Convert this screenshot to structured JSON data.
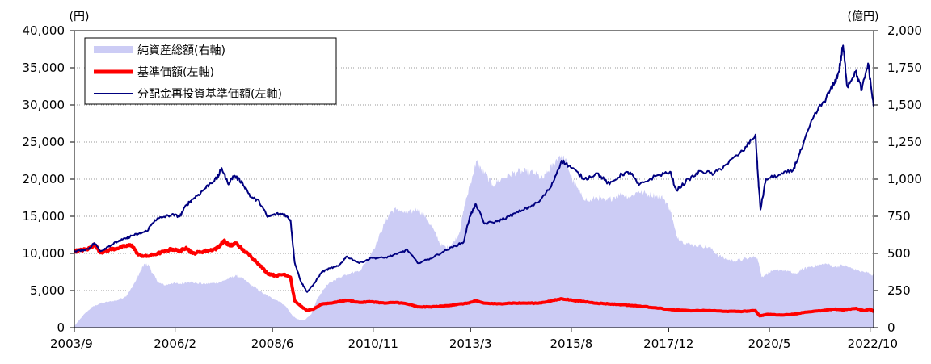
{
  "chart_data": {
    "type": "area",
    "left_axis": {
      "unit": "(円)",
      "ylim": [
        0,
        40000
      ],
      "ticks": [
        "0",
        "5,000",
        "10,000",
        "15,000",
        "20,000",
        "25,000",
        "30,000",
        "35,000",
        "40,000"
      ],
      "tick_values": [
        0,
        5000,
        10000,
        15000,
        20000,
        25000,
        30000,
        35000,
        40000
      ]
    },
    "right_axis": {
      "unit": "(億円)",
      "ylim": [
        0,
        2000
      ],
      "ticks": [
        "0",
        "250",
        "500",
        "750",
        "1,000",
        "1,250",
        "1,500",
        "1,750",
        "2,000"
      ],
      "tick_values": [
        0,
        250,
        500,
        750,
        1000,
        1250,
        1500,
        1750,
        2000
      ]
    },
    "x_axis": {
      "range": [
        2003.667,
        2022.833
      ],
      "tick_labels": [
        "2003/9",
        "2006/2",
        "2008/6",
        "2010/11",
        "2013/3",
        "2015/8",
        "2017/12",
        "2020/5",
        "2022/10"
      ],
      "tick_values": [
        2003.667,
        2006.083,
        2008.417,
        2010.833,
        2013.167,
        2015.583,
        2017.917,
        2020.333,
        2022.75
      ]
    },
    "grid": true,
    "legend_position": "top-left",
    "series": [
      {
        "name": "純資産総額(右軸)",
        "axis": "right",
        "style": "area",
        "color": "#ccccf5",
        "points": [
          [
            2003.667,
            10
          ],
          [
            2003.75,
            40
          ],
          [
            2003.9,
            90
          ],
          [
            2004.1,
            140
          ],
          [
            2004.3,
            165
          ],
          [
            2004.5,
            175
          ],
          [
            2004.7,
            185
          ],
          [
            2004.9,
            210
          ],
          [
            2005.0,
            250
          ],
          [
            2005.15,
            320
          ],
          [
            2005.25,
            380
          ],
          [
            2005.35,
            430
          ],
          [
            2005.45,
            420
          ],
          [
            2005.55,
            360
          ],
          [
            2005.7,
            300
          ],
          [
            2005.85,
            285
          ],
          [
            2006.0,
            300
          ],
          [
            2006.2,
            295
          ],
          [
            2006.4,
            310
          ],
          [
            2006.6,
            300
          ],
          [
            2006.8,
            295
          ],
          [
            2007.0,
            300
          ],
          [
            2007.2,
            310
          ],
          [
            2007.4,
            335
          ],
          [
            2007.55,
            350
          ],
          [
            2007.7,
            330
          ],
          [
            2007.85,
            300
          ],
          [
            2008.0,
            270
          ],
          [
            2008.2,
            230
          ],
          [
            2008.4,
            200
          ],
          [
            2008.6,
            175
          ],
          [
            2008.75,
            140
          ],
          [
            2008.9,
            80
          ],
          [
            2009.0,
            60
          ],
          [
            2009.1,
            50
          ],
          [
            2009.2,
            55
          ],
          [
            2009.35,
            90
          ],
          [
            2009.5,
            200
          ],
          [
            2009.7,
            280
          ],
          [
            2009.9,
            320
          ],
          [
            2010.1,
            350
          ],
          [
            2010.3,
            370
          ],
          [
            2010.5,
            380
          ],
          [
            2010.7,
            460
          ],
          [
            2010.9,
            560
          ],
          [
            2011.1,
            700
          ],
          [
            2011.25,
            780
          ],
          [
            2011.4,
            800
          ],
          [
            2011.6,
            770
          ],
          [
            2011.75,
            780
          ],
          [
            2011.9,
            800
          ],
          [
            2012.1,
            740
          ],
          [
            2012.3,
            650
          ],
          [
            2012.45,
            560
          ],
          [
            2012.6,
            540
          ],
          [
            2012.75,
            570
          ],
          [
            2012.9,
            640
          ],
          [
            2013.05,
            850
          ],
          [
            2013.2,
            1000
          ],
          [
            2013.3,
            1120
          ],
          [
            2013.4,
            1080
          ],
          [
            2013.5,
            1040
          ],
          [
            2013.7,
            960
          ],
          [
            2013.9,
            1000
          ],
          [
            2014.1,
            1030
          ],
          [
            2014.3,
            1050
          ],
          [
            2014.5,
            1050
          ],
          [
            2014.7,
            1040
          ],
          [
            2014.9,
            1000
          ],
          [
            2015.0,
            1040
          ],
          [
            2015.15,
            1100
          ],
          [
            2015.3,
            1160
          ],
          [
            2015.45,
            1130
          ],
          [
            2015.6,
            1000
          ],
          [
            2015.8,
            900
          ],
          [
            2016.0,
            850
          ],
          [
            2016.2,
            880
          ],
          [
            2016.4,
            850
          ],
          [
            2016.6,
            880
          ],
          [
            2016.8,
            900
          ],
          [
            2017.0,
            880
          ],
          [
            2017.2,
            920
          ],
          [
            2017.4,
            900
          ],
          [
            2017.6,
            890
          ],
          [
            2017.8,
            870
          ],
          [
            2017.95,
            800
          ],
          [
            2018.1,
            620
          ],
          [
            2018.25,
            580
          ],
          [
            2018.45,
            560
          ],
          [
            2018.7,
            550
          ],
          [
            2018.9,
            540
          ],
          [
            2019.1,
            490
          ],
          [
            2019.3,
            460
          ],
          [
            2019.5,
            450
          ],
          [
            2019.7,
            460
          ],
          [
            2019.9,
            470
          ],
          [
            2020.0,
            480
          ],
          [
            2020.08,
            440
          ],
          [
            2020.15,
            340
          ],
          [
            2020.25,
            360
          ],
          [
            2020.4,
            380
          ],
          [
            2020.6,
            390
          ],
          [
            2020.8,
            380
          ],
          [
            2020.95,
            360
          ],
          [
            2021.1,
            390
          ],
          [
            2021.3,
            410
          ],
          [
            2021.5,
            420
          ],
          [
            2021.7,
            430
          ],
          [
            2021.9,
            410
          ],
          [
            2022.1,
            420
          ],
          [
            2022.3,
            400
          ],
          [
            2022.5,
            380
          ],
          [
            2022.7,
            370
          ],
          [
            2022.833,
            350
          ]
        ]
      },
      {
        "name": "基準価額(左軸)",
        "axis": "left",
        "style": "line",
        "color": "#ff0000",
        "points": [
          [
            2003.667,
            10300
          ],
          [
            2003.8,
            10400
          ],
          [
            2004.0,
            10600
          ],
          [
            2004.15,
            11200
          ],
          [
            2004.3,
            10100
          ],
          [
            2004.5,
            10500
          ],
          [
            2004.7,
            10700
          ],
          [
            2004.9,
            11000
          ],
          [
            2005.05,
            11100
          ],
          [
            2005.2,
            9800
          ],
          [
            2005.4,
            9600
          ],
          [
            2005.6,
            9900
          ],
          [
            2005.8,
            10200
          ],
          [
            2006.0,
            10600
          ],
          [
            2006.2,
            10300
          ],
          [
            2006.35,
            10800
          ],
          [
            2006.5,
            10000
          ],
          [
            2006.7,
            10200
          ],
          [
            2006.9,
            10400
          ],
          [
            2007.1,
            10700
          ],
          [
            2007.25,
            11700
          ],
          [
            2007.4,
            11000
          ],
          [
            2007.55,
            11400
          ],
          [
            2007.7,
            10500
          ],
          [
            2007.9,
            9600
          ],
          [
            2008.1,
            8500
          ],
          [
            2008.3,
            7300
          ],
          [
            2008.5,
            7000
          ],
          [
            2008.7,
            7200
          ],
          [
            2008.85,
            6800
          ],
          [
            2008.95,
            3600
          ],
          [
            2009.1,
            2900
          ],
          [
            2009.25,
            2300
          ],
          [
            2009.4,
            2500
          ],
          [
            2009.6,
            3200
          ],
          [
            2009.8,
            3300
          ],
          [
            2010.0,
            3500
          ],
          [
            2010.2,
            3700
          ],
          [
            2010.5,
            3400
          ],
          [
            2010.8,
            3500
          ],
          [
            2011.1,
            3300
          ],
          [
            2011.4,
            3400
          ],
          [
            2011.65,
            3200
          ],
          [
            2011.9,
            2800
          ],
          [
            2012.2,
            2800
          ],
          [
            2012.5,
            2900
          ],
          [
            2012.8,
            3100
          ],
          [
            2013.1,
            3300
          ],
          [
            2013.3,
            3600
          ],
          [
            2013.5,
            3300
          ],
          [
            2013.8,
            3200
          ],
          [
            2014.1,
            3300
          ],
          [
            2014.4,
            3300
          ],
          [
            2014.8,
            3300
          ],
          [
            2015.1,
            3600
          ],
          [
            2015.35,
            3900
          ],
          [
            2015.6,
            3700
          ],
          [
            2015.9,
            3500
          ],
          [
            2016.2,
            3300
          ],
          [
            2016.5,
            3200
          ],
          [
            2016.8,
            3100
          ],
          [
            2017.2,
            2900
          ],
          [
            2017.6,
            2700
          ],
          [
            2018.0,
            2400
          ],
          [
            2018.4,
            2300
          ],
          [
            2018.9,
            2300
          ],
          [
            2019.3,
            2200
          ],
          [
            2019.7,
            2200
          ],
          [
            2020.0,
            2300
          ],
          [
            2020.1,
            1600
          ],
          [
            2020.3,
            1800
          ],
          [
            2020.6,
            1700
          ],
          [
            2020.9,
            1800
          ],
          [
            2021.2,
            2100
          ],
          [
            2021.6,
            2300
          ],
          [
            2021.9,
            2500
          ],
          [
            2022.1,
            2400
          ],
          [
            2022.4,
            2600
          ],
          [
            2022.6,
            2300
          ],
          [
            2022.75,
            2500
          ],
          [
            2022.833,
            2200
          ]
        ]
      },
      {
        "name": "分配金再投資基準価額(左軸)",
        "axis": "left",
        "style": "line",
        "color": "#000080",
        "points": [
          [
            2003.667,
            10300
          ],
          [
            2003.8,
            10400
          ],
          [
            2004.0,
            10600
          ],
          [
            2004.15,
            11400
          ],
          [
            2004.3,
            10300
          ],
          [
            2004.5,
            11000
          ],
          [
            2004.7,
            11600
          ],
          [
            2004.9,
            12000
          ],
          [
            2005.05,
            12400
          ],
          [
            2005.2,
            12600
          ],
          [
            2005.4,
            13000
          ],
          [
            2005.6,
            14500
          ],
          [
            2005.8,
            14900
          ],
          [
            2006.0,
            15200
          ],
          [
            2006.2,
            15000
          ],
          [
            2006.35,
            16500
          ],
          [
            2006.5,
            17300
          ],
          [
            2006.7,
            18200
          ],
          [
            2006.9,
            19300
          ],
          [
            2007.1,
            20200
          ],
          [
            2007.2,
            21500
          ],
          [
            2007.35,
            19400
          ],
          [
            2007.5,
            20500
          ],
          [
            2007.7,
            19500
          ],
          [
            2007.9,
            17600
          ],
          [
            2008.1,
            17000
          ],
          [
            2008.3,
            14900
          ],
          [
            2008.5,
            15300
          ],
          [
            2008.7,
            15300
          ],
          [
            2008.85,
            14500
          ],
          [
            2008.95,
            8800
          ],
          [
            2009.1,
            6200
          ],
          [
            2009.25,
            4800
          ],
          [
            2009.4,
            5800
          ],
          [
            2009.6,
            7500
          ],
          [
            2009.8,
            8000
          ],
          [
            2010.0,
            8300
          ],
          [
            2010.2,
            9600
          ],
          [
            2010.5,
            8700
          ],
          [
            2010.8,
            9400
          ],
          [
            2011.1,
            9400
          ],
          [
            2011.4,
            9900
          ],
          [
            2011.65,
            10500
          ],
          [
            2011.9,
            8700
          ],
          [
            2012.2,
            9300
          ],
          [
            2012.5,
            10200
          ],
          [
            2012.8,
            11000
          ],
          [
            2013.0,
            11500
          ],
          [
            2013.15,
            15000
          ],
          [
            2013.3,
            16600
          ],
          [
            2013.5,
            14000
          ],
          [
            2013.8,
            14300
          ],
          [
            2014.1,
            15000
          ],
          [
            2014.4,
            15800
          ],
          [
            2014.8,
            16900
          ],
          [
            2015.1,
            19000
          ],
          [
            2015.35,
            22500
          ],
          [
            2015.6,
            21500
          ],
          [
            2015.9,
            20000
          ],
          [
            2016.2,
            20800
          ],
          [
            2016.5,
            19300
          ],
          [
            2016.8,
            20700
          ],
          [
            2017.0,
            20900
          ],
          [
            2017.2,
            19200
          ],
          [
            2017.6,
            20400
          ],
          [
            2017.95,
            21000
          ],
          [
            2018.1,
            18500
          ],
          [
            2018.4,
            20000
          ],
          [
            2018.7,
            21100
          ],
          [
            2019.0,
            20700
          ],
          [
            2019.3,
            22000
          ],
          [
            2019.7,
            23800
          ],
          [
            2020.0,
            26000
          ],
          [
            2020.06,
            20500
          ],
          [
            2020.12,
            15900
          ],
          [
            2020.25,
            20000
          ],
          [
            2020.6,
            20600
          ],
          [
            2020.9,
            21200
          ],
          [
            2021.1,
            24000
          ],
          [
            2021.4,
            28500
          ],
          [
            2021.7,
            31000
          ],
          [
            2021.9,
            33000
          ],
          [
            2022.0,
            34500
          ],
          [
            2022.1,
            38000
          ],
          [
            2022.2,
            32500
          ],
          [
            2022.4,
            34500
          ],
          [
            2022.55,
            32000
          ],
          [
            2022.7,
            35600
          ],
          [
            2022.833,
            29800
          ]
        ]
      }
    ]
  }
}
